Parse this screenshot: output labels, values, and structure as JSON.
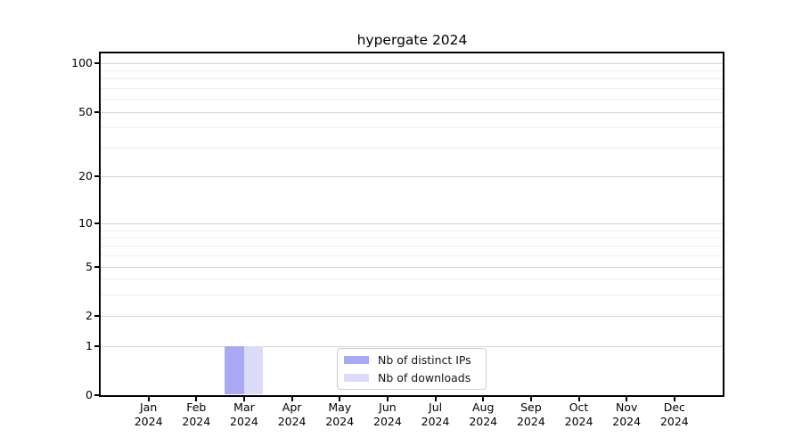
{
  "title": "hypergate 2024",
  "colors": {
    "distinct_ips": "#a9a9f4",
    "downloads": "#dcdcf9",
    "grid_major": "#d6d6d6",
    "grid_minor": "#efefef",
    "axis": "#000000",
    "legend_border": "#cccccc",
    "text": "#000000"
  },
  "y_axis": {
    "tick_values": [
      0,
      1,
      2,
      5,
      10,
      20,
      50,
      100
    ],
    "tick_labels": [
      "0",
      "1",
      "2",
      "5",
      "10",
      "20",
      "50",
      "100"
    ],
    "minor_values": [
      3,
      4,
      6,
      7,
      8,
      9,
      30,
      40,
      60,
      70,
      80,
      90
    ]
  },
  "x_axis": {
    "months": [
      "Jan",
      "Feb",
      "Mar",
      "Apr",
      "May",
      "Jun",
      "Jul",
      "Aug",
      "Sep",
      "Oct",
      "Nov",
      "Dec"
    ],
    "year": "2024"
  },
  "legend": {
    "items": [
      {
        "label": "Nb of distinct IPs",
        "color_key": "distinct_ips"
      },
      {
        "label": "Nb of downloads",
        "color_key": "downloads"
      }
    ]
  },
  "chart_data": {
    "type": "bar",
    "title": "hypergate 2024",
    "categories": [
      "Jan 2024",
      "Feb 2024",
      "Mar 2024",
      "Apr 2024",
      "May 2024",
      "Jun 2024",
      "Jul 2024",
      "Aug 2024",
      "Sep 2024",
      "Oct 2024",
      "Nov 2024",
      "Dec 2024"
    ],
    "series": [
      {
        "name": "Nb of distinct IPs",
        "values": [
          0,
          0,
          1,
          0,
          0,
          0,
          0,
          0,
          0,
          0,
          0,
          0
        ]
      },
      {
        "name": "Nb of downloads",
        "values": [
          0,
          0,
          1,
          0,
          0,
          0,
          0,
          0,
          0,
          0,
          0,
          0
        ]
      }
    ],
    "xlabel": "",
    "ylabel": "",
    "yscale": "log-like (0,1,2,5,10,20,50,100)",
    "y_ticks": [
      0,
      1,
      2,
      5,
      10,
      20,
      50,
      100
    ],
    "grid": "horizontal, major + minor",
    "legend_position": "lower center"
  }
}
